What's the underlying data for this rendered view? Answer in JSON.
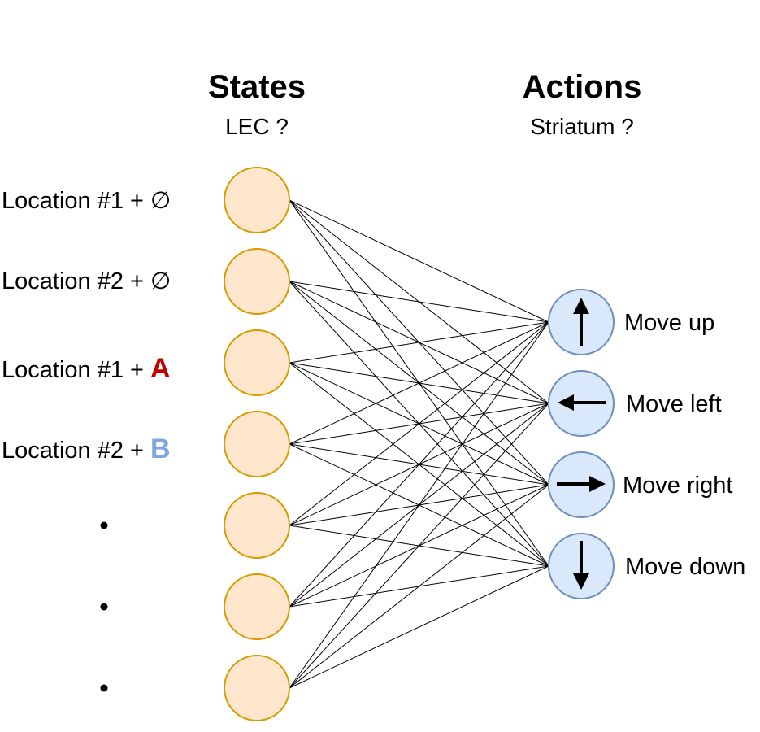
{
  "headers": {
    "states_title": "States",
    "states_subtitle": "LEC ?",
    "actions_title": "Actions",
    "actions_subtitle": "Striatum ?"
  },
  "states": [
    {
      "prefix": "Location #1 + ",
      "marker": "∅",
      "marker_color": "#000000"
    },
    {
      "prefix": "Location #2 + ",
      "marker": "∅",
      "marker_color": "#000000"
    },
    {
      "prefix": "Location #1 + ",
      "marker": "A",
      "marker_color": "#c00000"
    },
    {
      "prefix": "Location #2 + ",
      "marker": "B",
      "marker_color": "#7ea6e0"
    },
    {
      "prefix": "",
      "marker": "",
      "marker_color": "#000000"
    },
    {
      "prefix": "",
      "marker": "",
      "marker_color": "#000000"
    },
    {
      "prefix": "",
      "marker": "",
      "marker_color": "#000000"
    }
  ],
  "actions": [
    {
      "label": "Move up",
      "icon": "arrow-up-icon"
    },
    {
      "label": "Move left",
      "icon": "arrow-left-icon"
    },
    {
      "label": "Move right",
      "icon": "arrow-right-icon"
    },
    {
      "label": "Move down",
      "icon": "arrow-down-icon"
    }
  ],
  "colors": {
    "state_fill": "#ffe6cc",
    "state_stroke": "#d79b00",
    "action_fill": "#dae8fc",
    "action_stroke": "#6c8ebf",
    "edge": "#000000"
  }
}
